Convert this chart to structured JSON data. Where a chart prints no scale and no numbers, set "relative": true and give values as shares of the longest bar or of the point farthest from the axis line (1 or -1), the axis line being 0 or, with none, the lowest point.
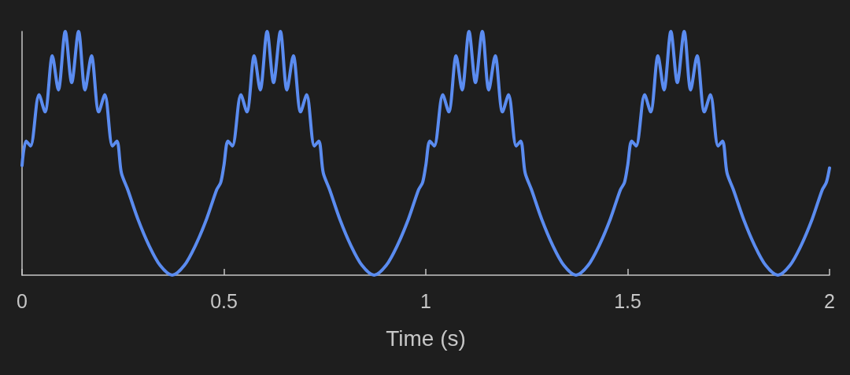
{
  "chart_data": {
    "type": "line",
    "xlabel": "Time (s)",
    "relative": true,
    "x": [
      0,
      0.01,
      0.021,
      0.042,
      0.057,
      0.075,
      0.09,
      0.107,
      0.123,
      0.14,
      0.156,
      0.172,
      0.19,
      0.205,
      0.224,
      0.235,
      0.246,
      0.262,
      0.287,
      0.315,
      0.342,
      0.372,
      0.402,
      0.429,
      0.457,
      0.482,
      0.492,
      0.5,
      0.51,
      0.521,
      0.542,
      0.557,
      0.575,
      0.59,
      0.607,
      0.623,
      0.64,
      0.656,
      0.672,
      0.69,
      0.705,
      0.724,
      0.735,
      0.746,
      0.762,
      0.787,
      0.815,
      0.842,
      0.872,
      0.902,
      0.929,
      0.957,
      0.982,
      0.992,
      1,
      1.01,
      1.021,
      1.042,
      1.057,
      1.075,
      1.09,
      1.107,
      1.123,
      1.14,
      1.156,
      1.172,
      1.19,
      1.205,
      1.224,
      1.235,
      1.246,
      1.262,
      1.287,
      1.315,
      1.342,
      1.372,
      1.402,
      1.429,
      1.457,
      1.482,
      1.492,
      1.5,
      1.51,
      1.521,
      1.542,
      1.557,
      1.575,
      1.59,
      1.607,
      1.623,
      1.64,
      1.656,
      1.672,
      1.69,
      1.705,
      1.724,
      1.735,
      1.746,
      1.762,
      1.787,
      1.815,
      1.842,
      1.872,
      1.902,
      1.929,
      1.957,
      1.982,
      1.992,
      2
    ],
    "series": [
      {
        "color": "#5b8cf0",
        "values": [
          0.45,
          0.55,
          0.53,
          0.74,
          0.67,
          0.9,
          0.76,
          1,
          0.79,
          1,
          0.76,
          0.9,
          0.67,
          0.74,
          0.53,
          0.55,
          0.42,
          0.35,
          0.23,
          0.12,
          0.04,
          0,
          0.04,
          0.12,
          0.23,
          0.35,
          0.38,
          0.45,
          0.55,
          0.53,
          0.74,
          0.67,
          0.9,
          0.76,
          1,
          0.79,
          1,
          0.76,
          0.9,
          0.67,
          0.74,
          0.53,
          0.55,
          0.42,
          0.35,
          0.23,
          0.12,
          0.04,
          0,
          0.04,
          0.12,
          0.23,
          0.35,
          0.38,
          0.45,
          0.55,
          0.53,
          0.74,
          0.67,
          0.9,
          0.76,
          1,
          0.79,
          1,
          0.76,
          0.9,
          0.67,
          0.74,
          0.53,
          0.55,
          0.42,
          0.35,
          0.23,
          0.12,
          0.04,
          0,
          0.04,
          0.12,
          0.23,
          0.35,
          0.38,
          0.45,
          0.55,
          0.53,
          0.74,
          0.67,
          0.9,
          0.76,
          1,
          0.79,
          1,
          0.76,
          0.9,
          0.67,
          0.74,
          0.53,
          0.55,
          0.42,
          0.35,
          0.23,
          0.12,
          0.04,
          0,
          0.04,
          0.12,
          0.23,
          0.35,
          0.38,
          0.44
        ]
      }
    ],
    "xlim": [
      0,
      2
    ],
    "xticks": [
      0,
      0.5,
      1,
      1.5,
      2
    ]
  }
}
